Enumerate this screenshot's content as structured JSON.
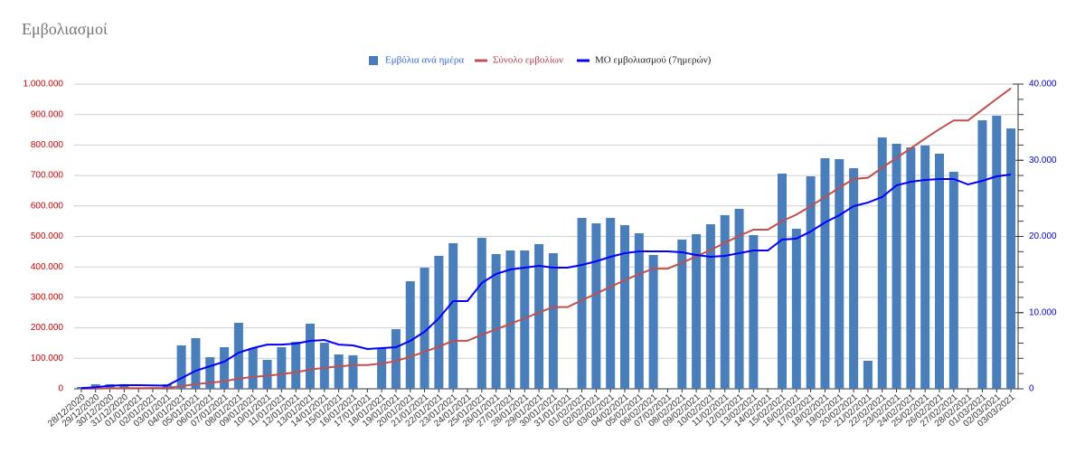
{
  "chart_data": {
    "type": "combo",
    "title": "Εμβολιασμοί",
    "legend": "top",
    "categories": [
      "28/12/2020",
      "29/12/2020",
      "30/12/2020",
      "31/12/2020",
      "01/01/2021",
      "02/01/2021",
      "03/01/2021",
      "04/01/2021",
      "05/01/2021",
      "06/01/2021",
      "07/01/2021",
      "08/01/2021",
      "09/01/2021",
      "10/01/2021",
      "11/01/2021",
      "12/01/2021",
      "13/01/2021",
      "14/01/2021",
      "15/01/2021",
      "16/01/2021",
      "17/01/2021",
      "18/01/2021",
      "19/01/2021",
      "20/01/2021",
      "21/01/2021",
      "22/01/2021",
      "23/01/2021",
      "24/01/2021",
      "25/01/2021",
      "26/01/2021",
      "27/01/2021",
      "28/01/2021",
      "29/01/2021",
      "30/01/2021",
      "31/01/2021",
      "01/02/2021",
      "02/02/2021",
      "03/02/2021",
      "04/02/2021",
      "05/02/2021",
      "06/02/2021",
      "07/02/2021",
      "08/02/2021",
      "09/02/2021",
      "10/02/2021",
      "11/02/2021",
      "12/02/2021",
      "13/02/2021",
      "14/02/2021",
      "15/02/2021",
      "16/02/2021",
      "17/02/2021",
      "18/02/2021",
      "19/02/2021",
      "20/02/2021",
      "21/02/2021",
      "22/02/2021",
      "23/02/2021",
      "24/02/2021",
      "25/02/2021",
      "26/02/2021",
      "27/02/2021",
      "28/02/2021",
      "01/03/2021",
      "02/03/2021",
      "03/03/2021"
    ],
    "series": [
      {
        "name": "Εμβόλια ανά ημέρα",
        "type": "bar",
        "axis": "y2",
        "color": "#4a7ebb",
        "values": [
          240,
          600,
          600,
          600,
          100,
          200,
          600,
          5700,
          6650,
          4150,
          5460,
          8660,
          5340,
          3800,
          5460,
          6170,
          8550,
          6050,
          4510,
          4390,
          0,
          5340,
          7830,
          14120,
          15900,
          17450,
          19110,
          0,
          19820,
          17690,
          18160,
          18160,
          18990,
          17800,
          0,
          22430,
          21720,
          22430,
          21480,
          20420,
          17570,
          0,
          19590,
          20300,
          21600,
          22790,
          23620,
          20180,
          0,
          28250,
          21010,
          27890,
          30270,
          30150,
          28960,
          3680,
          33000,
          32170,
          31690,
          31930,
          30860,
          28490,
          0,
          35250,
          35850,
          34180
        ]
      },
      {
        "name": "Σύνολο εμβολίων",
        "type": "line",
        "axis": "y",
        "color": "#c0504d",
        "values": [
          240,
          840,
          1440,
          2040,
          2140,
          2340,
          2940,
          8640,
          15290,
          19440,
          24900,
          33560,
          38900,
          42700,
          48160,
          54330,
          62880,
          68930,
          73440,
          77830,
          77830,
          83170,
          91000,
          105120,
          121020,
          138470,
          157580,
          157580,
          177400,
          195090,
          213250,
          231410,
          250400,
          268200,
          268200,
          290630,
          312350,
          334780,
          356260,
          376680,
          394250,
          394250,
          413840,
          434140,
          455740,
          478530,
          502150,
          522330,
          522330,
          550580,
          571590,
          599480,
          629750,
          659900,
          688860,
          692540,
          725540,
          757710,
          789400,
          821330,
          852190,
          880680,
          880680,
          915930,
          951780,
          985960
        ]
      },
      {
        "name": "ΜΟ εμβολιασμού (7ημερών)",
        "type": "line",
        "axis": "y2",
        "color": "#0000ff",
        "values": [
          100,
          200,
          400,
          480,
          480,
          450,
          420,
          1400,
          2370,
          2970,
          3560,
          4750,
          5340,
          5810,
          5810,
          5930,
          6290,
          6410,
          5810,
          5700,
          5220,
          5340,
          5460,
          6290,
          7480,
          9260,
          11510,
          11510,
          13890,
          15070,
          15670,
          15900,
          16140,
          15900,
          15900,
          16260,
          16740,
          17330,
          17800,
          18040,
          18040,
          18040,
          17920,
          17570,
          17330,
          17450,
          17800,
          18160,
          18160,
          19590,
          19710,
          20650,
          21840,
          22790,
          23980,
          24450,
          25170,
          26710,
          27180,
          27420,
          27540,
          27540,
          26830,
          27300,
          27890,
          28130
        ]
      }
    ],
    "ylim": [
      0,
      1000000
    ],
    "yticks": [
      0,
      {
        "value": 100000,
        "label": "100.000"
      },
      {
        "value": 200000,
        "label": "200.000"
      },
      {
        "value": 300000,
        "label": "300.000"
      },
      {
        "value": 400000,
        "label": "400.000"
      },
      {
        "value": 500000,
        "label": "500.000"
      },
      {
        "value": 600000,
        "label": "600.000"
      },
      {
        "value": 700000,
        "label": "700.000"
      },
      {
        "value": 800000,
        "label": "800.000"
      },
      {
        "value": 900000,
        "label": "900.000"
      },
      {
        "value": 1000000,
        "label": "1.000.000"
      }
    ],
    "y2lim": [
      0,
      40000
    ],
    "y2ticks": [
      0,
      {
        "value": 10000,
        "label": "10.000"
      },
      {
        "value": 20000,
        "label": "20.000"
      },
      {
        "value": 30000,
        "label": "30.000"
      },
      {
        "value": 40000,
        "label": "40.000"
      }
    ],
    "grid": true
  }
}
